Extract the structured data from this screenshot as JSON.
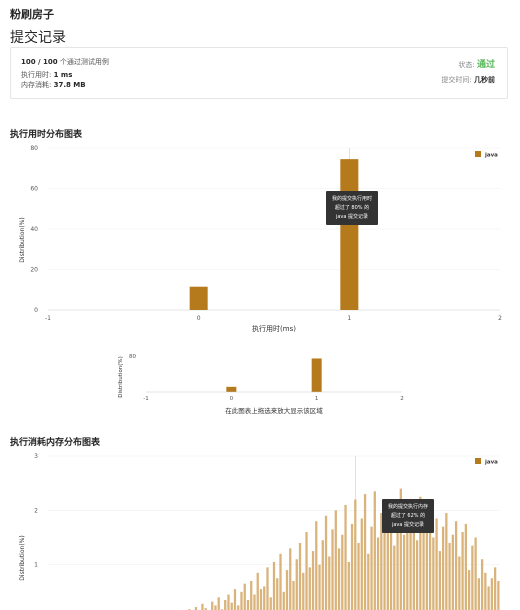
{
  "problem_title": "粉刷房子",
  "page_title": "提交记录",
  "summary": {
    "tests_passed": "100 / 100",
    "tests_suffix": "个通过测试用例",
    "runtime_label": "执行用时:",
    "runtime_value": "1 ms",
    "memory_label": "内存消耗:",
    "memory_value": "37.8 MB",
    "status_label": "状态:",
    "status_value": "通过",
    "submit_time_label": "提交时间:",
    "submit_time_value": "几秒前"
  },
  "colors": {
    "bar": "#b47a1b",
    "accent_ok": "#5cb85c"
  },
  "runtime_section": {
    "title": "执行用时分布图表"
  },
  "memory_section": {
    "title": "执行消耗内存分布图表"
  },
  "tooltips": {
    "runtime": [
      "我的提交执行用时",
      "超过了 80% 的",
      "java 提交记录"
    ],
    "memory": [
      "我的提交执行内存",
      "超过了 62% 的",
      "java 提交记录"
    ]
  },
  "navigator_hint": "在此图表上拖选来放大显示该区域",
  "chart_data": [
    {
      "type": "bar",
      "name": "runtime-distribution",
      "x": [
        0,
        1
      ],
      "values": [
        11.5,
        74.5
      ],
      "highlight_x": 1,
      "xlabel": "执行用时(ms)",
      "ylabel": "Distribution(%)",
      "xlim": [
        -1,
        2
      ],
      "ylim": [
        0,
        80
      ],
      "xticks": [
        "-1",
        "0",
        "1",
        "2"
      ],
      "yticks": [
        "0",
        "20",
        "40",
        "60",
        "80"
      ],
      "legend": "java",
      "legend_position": "top-right"
    },
    {
      "type": "bar",
      "name": "runtime-navigator",
      "x": [
        0,
        1
      ],
      "values": [
        11.5,
        74.5
      ],
      "xlim": [
        -1,
        2
      ],
      "ylim": [
        0,
        80
      ],
      "ylabel": "Distribution(%)",
      "xticks": [
        "-1",
        "0",
        "1",
        "2"
      ],
      "yticks": [
        "80"
      ]
    },
    {
      "type": "bar",
      "name": "memory-distribution",
      "ylabel": "Distribution(%)",
      "ylim": [
        0,
        3
      ],
      "yticks": [
        "1",
        "2",
        "3"
      ],
      "legend": "java",
      "legend_position": "top-right",
      "values": [
        0.01,
        0.0,
        0.02,
        0.0,
        0.0,
        0.01,
        0.0,
        0.0,
        0.02,
        0.0,
        0.01,
        0.0,
        0.0,
        0.03,
        0.0,
        0.02,
        0.0,
        0.03,
        0.0,
        0.01,
        0.02,
        0.0,
        0.04,
        0.0,
        0.03,
        0.05,
        0.0,
        0.04,
        0.0,
        0.06,
        0.02,
        0.0,
        0.05,
        0.08,
        0.0,
        0.06,
        0.1,
        0.0,
        0.08,
        0.12,
        0.05,
        0.14,
        0.1,
        0.18,
        0.08,
        0.22,
        0.15,
        0.28,
        0.2,
        0.12,
        0.32,
        0.25,
        0.4,
        0.18,
        0.35,
        0.45,
        0.3,
        0.55,
        0.25,
        0.5,
        0.65,
        0.35,
        0.7,
        0.45,
        0.85,
        0.55,
        0.6,
        0.95,
        0.4,
        1.05,
        0.75,
        1.2,
        0.5,
        0.9,
        1.3,
        0.7,
        1.1,
        1.4,
        0.85,
        1.6,
        0.95,
        1.25,
        1.8,
        1.0,
        1.45,
        1.9,
        1.15,
        1.65,
        2.0,
        1.3,
        1.55,
        2.1,
        1.05,
        1.75,
        2.2,
        1.4,
        1.85,
        2.3,
        1.2,
        1.7,
        2.35,
        1.5,
        1.95,
        2.05,
        1.6,
        2.2,
        1.35,
        1.9,
        2.4,
        1.55,
        2.0,
        2.15,
        1.8,
        1.45,
        2.25,
        1.65,
        1.95,
        2.1,
        1.5,
        1.85,
        1.25,
        1.7,
        1.95,
        1.4,
        1.55,
        1.8,
        1.15,
        1.6,
        1.75,
        0.9,
        1.35,
        1.5,
        0.75,
        1.1,
        0.85,
        0.6,
        0.75,
        0.95,
        0.7
      ],
      "highlight_index": 94
    }
  ]
}
